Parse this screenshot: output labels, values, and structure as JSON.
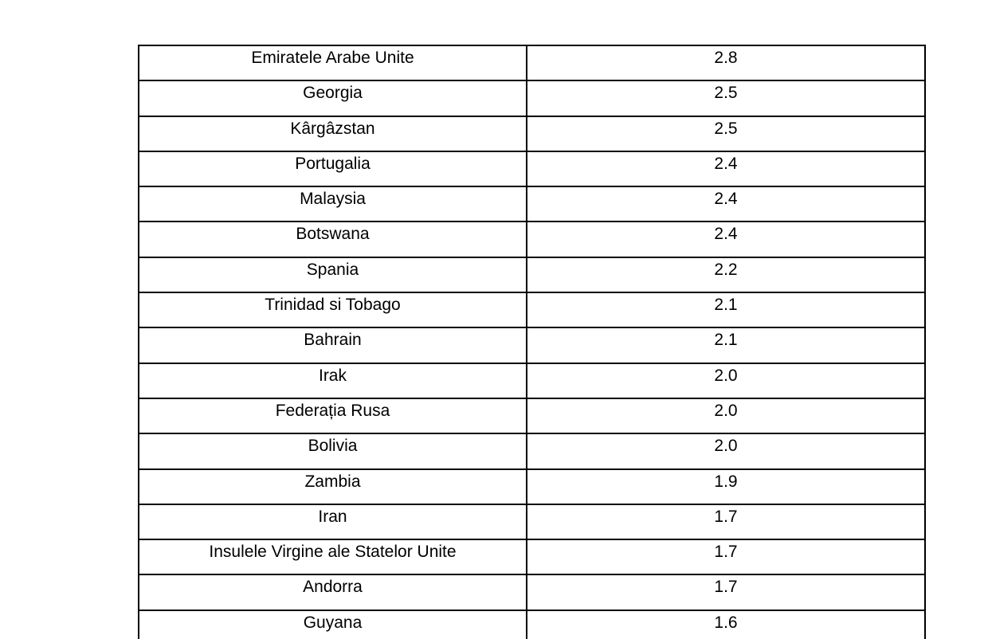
{
  "table": {
    "rows": [
      {
        "country": "Emiratele Arabe Unite",
        "value": "2.8"
      },
      {
        "country": "Georgia",
        "value": "2.5"
      },
      {
        "country": "Kârgâzstan",
        "value": "2.5"
      },
      {
        "country": "Portugalia",
        "value": "2.4"
      },
      {
        "country": "Malaysia",
        "value": "2.4"
      },
      {
        "country": "Botswana",
        "value": "2.4"
      },
      {
        "country": "Spania",
        "value": "2.2"
      },
      {
        "country": "Trinidad si Tobago",
        "value": "2.1"
      },
      {
        "country": "Bahrain",
        "value": "2.1"
      },
      {
        "country": "Irak",
        "value": "2.0"
      },
      {
        "country": "Federația Rusa",
        "value": "2.0"
      },
      {
        "country": "Bolivia",
        "value": "2.0"
      },
      {
        "country": "Zambia",
        "value": "1.9"
      },
      {
        "country": "Iran",
        "value": "1.7"
      },
      {
        "country": "Insulele Virgine ale Statelor Unite",
        "value": "1.7"
      },
      {
        "country": "Andorra",
        "value": "1.7"
      },
      {
        "country": "Guyana",
        "value": "1.6"
      }
    ]
  },
  "colors": {
    "border": "#000000",
    "text": "#000000",
    "background": "#ffffff"
  }
}
